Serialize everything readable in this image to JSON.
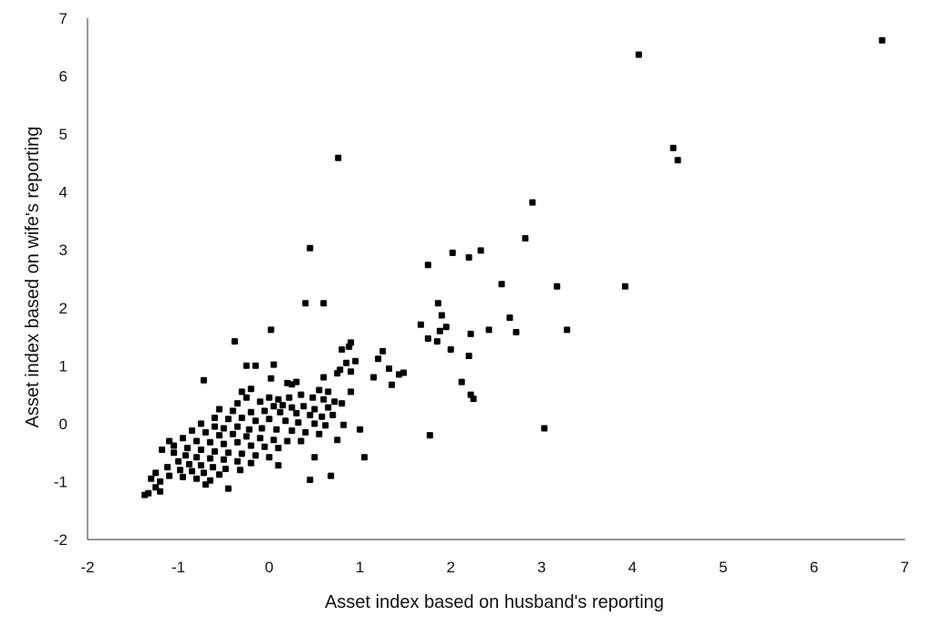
{
  "chart_data": {
    "type": "scatter",
    "title": "",
    "xlabel": "Asset index  based on husband's reporting",
    "ylabel": "Asset index  based on wife's reporting",
    "xlim": [
      -2,
      7
    ],
    "ylim": [
      -2,
      7
    ],
    "x_ticks": [
      "-2",
      "-1",
      "0",
      "1",
      "2",
      "3",
      "4",
      "5",
      "6",
      "7"
    ],
    "y_ticks": [
      "-2",
      "-1",
      "0",
      "1",
      "2",
      "3",
      "4",
      "5",
      "6",
      "7"
    ],
    "grid": false,
    "legend": "none",
    "marker_color": "#000000",
    "points": [
      [
        6.75,
        6.62
      ],
      [
        4.07,
        6.37
      ],
      [
        4.45,
        4.76
      ],
      [
        4.5,
        4.55
      ],
      [
        0.76,
        4.59
      ],
      [
        2.9,
        3.82
      ],
      [
        2.82,
        3.2
      ],
      [
        0.45,
        3.03
      ],
      [
        2.33,
        2.99
      ],
      [
        2.02,
        2.95
      ],
      [
        2.2,
        2.87
      ],
      [
        1.75,
        2.74
      ],
      [
        2.56,
        2.41
      ],
      [
        3.17,
        2.37
      ],
      [
        3.92,
        2.37
      ],
      [
        0.4,
        2.08
      ],
      [
        0.6,
        2.08
      ],
      [
        1.86,
        2.08
      ],
      [
        1.9,
        1.87
      ],
      [
        2.65,
        1.83
      ],
      [
        1.67,
        1.71
      ],
      [
        1.95,
        1.67
      ],
      [
        1.88,
        1.6
      ],
      [
        2.42,
        1.62
      ],
      [
        2.72,
        1.58
      ],
      [
        3.28,
        1.62
      ],
      [
        2.22,
        1.55
      ],
      [
        1.75,
        1.47
      ],
      [
        1.85,
        1.42
      ],
      [
        0.02,
        1.62
      ],
      [
        -0.38,
        1.42
      ],
      [
        0.9,
        1.4
      ],
      [
        0.88,
        1.33
      ],
      [
        0.8,
        1.28
      ],
      [
        2.0,
        1.28
      ],
      [
        1.25,
        1.25
      ],
      [
        2.2,
        1.17
      ],
      [
        1.2,
        1.12
      ],
      [
        0.95,
        1.08
      ],
      [
        0.85,
        1.05
      ],
      [
        -0.25,
        1.0
      ],
      [
        -0.15,
        1.0
      ],
      [
        0.05,
        1.02
      ],
      [
        0.78,
        0.93
      ],
      [
        0.9,
        0.9
      ],
      [
        1.32,
        0.95
      ],
      [
        1.48,
        0.88
      ],
      [
        1.43,
        0.85
      ],
      [
        1.15,
        0.8
      ],
      [
        0.75,
        0.87
      ],
      [
        0.6,
        0.8
      ],
      [
        0.02,
        0.78
      ],
      [
        0.3,
        0.72
      ],
      [
        0.2,
        0.7
      ],
      [
        0.25,
        0.68
      ],
      [
        1.35,
        0.67
      ],
      [
        2.12,
        0.72
      ],
      [
        0.55,
        0.58
      ],
      [
        0.65,
        0.55
      ],
      [
        0.9,
        0.55
      ],
      [
        2.22,
        0.5
      ],
      [
        2.25,
        0.43
      ],
      [
        -0.72,
        0.75
      ],
      [
        -0.3,
        0.55
      ],
      [
        -0.2,
        0.6
      ],
      [
        -0.25,
        0.45
      ],
      [
        0.0,
        0.45
      ],
      [
        0.1,
        0.42
      ],
      [
        0.22,
        0.45
      ],
      [
        0.35,
        0.5
      ],
      [
        0.48,
        0.45
      ],
      [
        0.6,
        0.42
      ],
      [
        0.72,
        0.38
      ],
      [
        0.8,
        0.35
      ],
      [
        -0.35,
        0.35
      ],
      [
        -0.1,
        0.38
      ],
      [
        0.05,
        0.3
      ],
      [
        0.15,
        0.32
      ],
      [
        0.25,
        0.28
      ],
      [
        0.38,
        0.3
      ],
      [
        0.5,
        0.25
      ],
      [
        0.65,
        0.28
      ],
      [
        -0.55,
        0.25
      ],
      [
        -0.4,
        0.22
      ],
      [
        -0.2,
        0.2
      ],
      [
        -0.05,
        0.22
      ],
      [
        0.12,
        0.2
      ],
      [
        0.3,
        0.18
      ],
      [
        0.45,
        0.15
      ],
      [
        0.58,
        0.12
      ],
      [
        0.7,
        0.15
      ],
      [
        -0.6,
        0.1
      ],
      [
        -0.45,
        0.08
      ],
      [
        -0.3,
        0.1
      ],
      [
        -0.15,
        0.05
      ],
      [
        0.0,
        0.08
      ],
      [
        0.18,
        0.05
      ],
      [
        0.32,
        0.02
      ],
      [
        0.5,
        0.0
      ],
      [
        0.62,
        -0.03
      ],
      [
        0.82,
        -0.02
      ],
      [
        -0.75,
        0.0
      ],
      [
        -0.6,
        -0.05
      ],
      [
        -0.5,
        -0.08
      ],
      [
        -0.35,
        -0.05
      ],
      [
        -0.22,
        -0.1
      ],
      [
        -0.08,
        -0.08
      ],
      [
        0.08,
        -0.1
      ],
      [
        0.25,
        -0.12
      ],
      [
        0.4,
        -0.15
      ],
      [
        0.55,
        -0.18
      ],
      [
        1.0,
        -0.1
      ],
      [
        3.03,
        -0.08
      ],
      [
        -0.85,
        -0.12
      ],
      [
        -0.7,
        -0.15
      ],
      [
        -0.55,
        -0.2
      ],
      [
        -0.4,
        -0.18
      ],
      [
        -0.25,
        -0.22
      ],
      [
        -0.1,
        -0.25
      ],
      [
        0.05,
        -0.28
      ],
      [
        0.2,
        -0.3
      ],
      [
        0.35,
        -0.3
      ],
      [
        0.75,
        -0.28
      ],
      [
        1.77,
        -0.2
      ],
      [
        -0.95,
        -0.25
      ],
      [
        -0.8,
        -0.3
      ],
      [
        -0.65,
        -0.32
      ],
      [
        -0.5,
        -0.35
      ],
      [
        -0.35,
        -0.32
      ],
      [
        -0.2,
        -0.38
      ],
      [
        -0.05,
        -0.4
      ],
      [
        0.1,
        -0.42
      ],
      [
        -1.1,
        -0.3
      ],
      [
        -1.05,
        -0.38
      ],
      [
        -0.9,
        -0.42
      ],
      [
        -0.75,
        -0.45
      ],
      [
        -0.6,
        -0.48
      ],
      [
        -0.45,
        -0.5
      ],
      [
        -0.3,
        -0.52
      ],
      [
        -0.15,
        -0.55
      ],
      [
        0.0,
        -0.58
      ],
      [
        0.5,
        -0.58
      ],
      [
        1.05,
        -0.58
      ],
      [
        -1.18,
        -0.45
      ],
      [
        -1.05,
        -0.5
      ],
      [
        -0.92,
        -0.55
      ],
      [
        -0.8,
        -0.58
      ],
      [
        -0.65,
        -0.6
      ],
      [
        -0.5,
        -0.62
      ],
      [
        -0.35,
        -0.65
      ],
      [
        -0.2,
        -0.68
      ],
      [
        0.1,
        -0.72
      ],
      [
        -1.0,
        -0.65
      ],
      [
        -0.88,
        -0.7
      ],
      [
        -0.75,
        -0.72
      ],
      [
        -0.62,
        -0.75
      ],
      [
        -0.48,
        -0.78
      ],
      [
        -0.32,
        -0.8
      ],
      [
        -1.12,
        -0.75
      ],
      [
        -0.98,
        -0.8
      ],
      [
        -0.85,
        -0.82
      ],
      [
        -0.72,
        -0.85
      ],
      [
        -0.55,
        -0.88
      ],
      [
        0.68,
        -0.9
      ],
      [
        -1.25,
        -0.85
      ],
      [
        -1.1,
        -0.9
      ],
      [
        -0.95,
        -0.92
      ],
      [
        -0.8,
        -0.95
      ],
      [
        -0.65,
        -0.98
      ],
      [
        0.45,
        -0.97
      ],
      [
        -1.3,
        -0.95
      ],
      [
        -1.2,
        -1.0
      ],
      [
        -0.7,
        -1.05
      ],
      [
        -1.25,
        -1.1
      ],
      [
        -0.45,
        -1.12
      ],
      [
        -1.2,
        -1.17
      ],
      [
        -1.33,
        -1.2
      ],
      [
        -1.37,
        -1.23
      ]
    ]
  }
}
